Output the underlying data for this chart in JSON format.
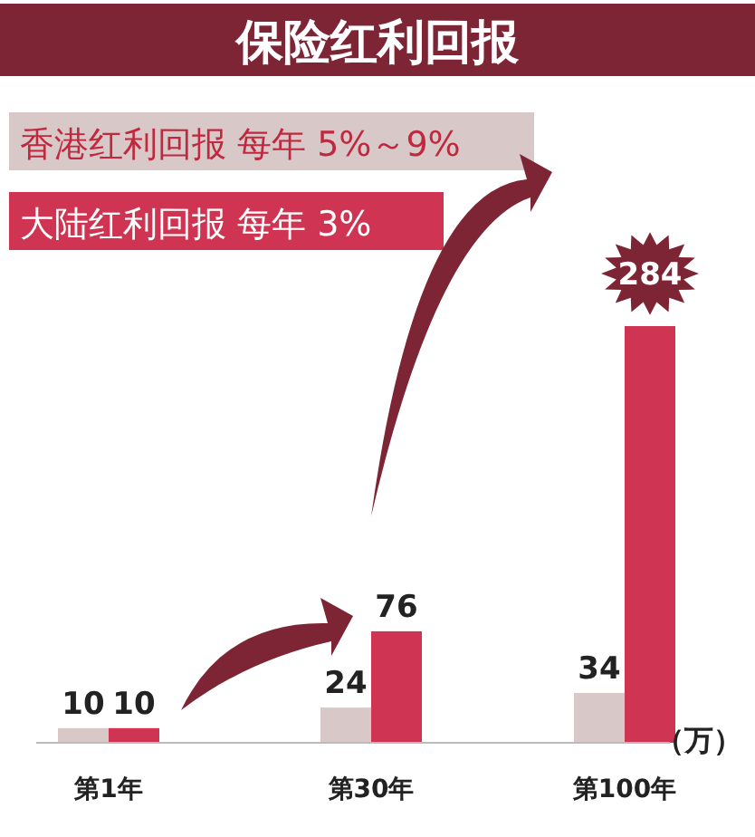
{
  "chart_data": {
    "type": "bar",
    "title": "保险红利回报",
    "categories": [
      "第1年",
      "第30年",
      "第100年"
    ],
    "series": [
      {
        "name": "香港红利回报 每年 5%～9%",
        "color": "#d8c8c8",
        "values": [
          10,
          24,
          34
        ]
      },
      {
        "name": "大陆红利回报 每年 3%",
        "color": "#cf3552",
        "values": [
          10,
          76,
          284
        ]
      }
    ],
    "data_labels": true,
    "legend": "top left",
    "annotations": [
      "（万）"
    ]
  }
}
